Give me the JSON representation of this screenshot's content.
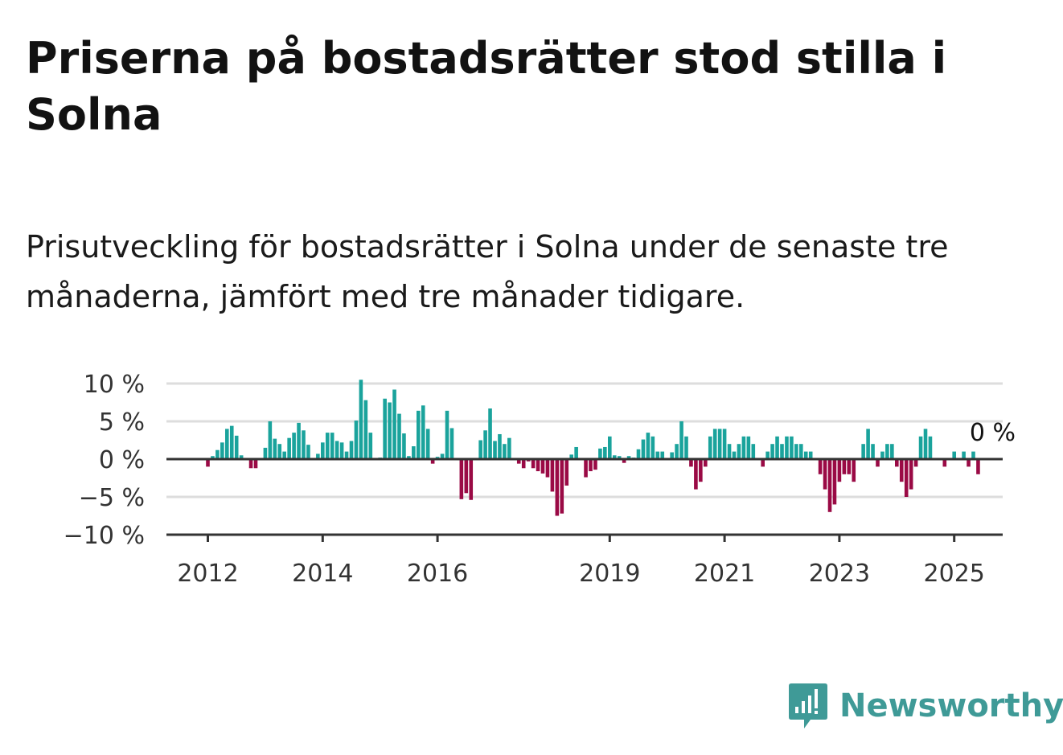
{
  "header": {
    "title": "Priserna på bostadsrätter stod stilla i Solna",
    "subtitle": "Prisutveckling för bostadsrätter i Solna under de senaste tre månaderna, jämfört med tre månader tidigare."
  },
  "brand": {
    "name": "Newsworthy",
    "icon": "newsworthy-logo-icon",
    "color": "#3f9a97"
  },
  "colors": {
    "positive": "#1aa39c",
    "negative": "#9a0a45",
    "grid": "#dddddd",
    "axis": "#333333"
  },
  "chart_data": {
    "type": "bar",
    "x_start": "2012-01",
    "frequency": "monthly",
    "ylim": [
      -10,
      10
    ],
    "yticks": [
      {
        "value": 10,
        "label": "10 %"
      },
      {
        "value": 5,
        "label": "5 %"
      },
      {
        "value": 0,
        "label": "0 %"
      },
      {
        "value": -5,
        "label": "−5 %"
      },
      {
        "value": -10,
        "label": "−10 %"
      }
    ],
    "xticks": [
      {
        "year": 2012,
        "label": "2012"
      },
      {
        "year": 2014,
        "label": "2014"
      },
      {
        "year": 2016,
        "label": "2016"
      },
      {
        "year": 2019,
        "label": "2019"
      },
      {
        "year": 2021,
        "label": "2021"
      },
      {
        "year": 2023,
        "label": "2023"
      },
      {
        "year": 2025,
        "label": "2025"
      }
    ],
    "grid": true,
    "annotation": {
      "text": "0 %",
      "target": "last"
    },
    "values": [
      -1,
      0.4,
      1.2,
      2.2,
      4,
      4.4,
      3.1,
      0.5,
      0,
      -1.2,
      -1.2,
      0,
      1.5,
      5,
      2.7,
      2,
      1,
      2.8,
      3.5,
      4.8,
      3.8,
      1.9,
      0,
      0.7,
      2.2,
      3.5,
      3.5,
      2.4,
      2.2,
      1,
      2.4,
      5.1,
      10.5,
      7.8,
      3.5,
      0,
      0.2,
      8,
      7.5,
      9.2,
      6,
      3.4,
      0.4,
      1.7,
      6.4,
      7.1,
      4,
      -0.6,
      0.3,
      0.7,
      6.4,
      4.1,
      0,
      -5.3,
      -4.5,
      -5.4,
      0,
      2.5,
      3.8,
      6.7,
      2.4,
      3.3,
      2,
      2.8,
      0,
      -0.6,
      -1.2,
      -0.3,
      -1.2,
      -1.6,
      -1.9,
      -2.4,
      -4.3,
      -7.5,
      -7.2,
      -3.5,
      0.6,
      1.6,
      0,
      -2.4,
      -1.6,
      -1.4,
      1.4,
      1.6,
      3,
      0.5,
      0.4,
      -0.5,
      0.4,
      0.2,
      1.3,
      2.6,
      3.5,
      3,
      1,
      1,
      0,
      0.9,
      2,
      5,
      3,
      -1,
      -4,
      -3,
      -1,
      3,
      4,
      4,
      4,
      2,
      1,
      2,
      3,
      3,
      2,
      0,
      -1,
      1,
      2,
      3,
      2,
      3,
      3,
      2,
      2,
      1,
      1,
      0,
      -2,
      -4,
      -7,
      -6,
      -3,
      -2,
      -2,
      -3,
      0,
      2,
      4,
      2,
      -1,
      1,
      2,
      2,
      -1,
      -3,
      -5,
      -4,
      -1,
      3,
      4,
      3,
      0,
      0,
      -1,
      0,
      1,
      0,
      1,
      -1,
      1,
      -2,
      0
    ]
  }
}
